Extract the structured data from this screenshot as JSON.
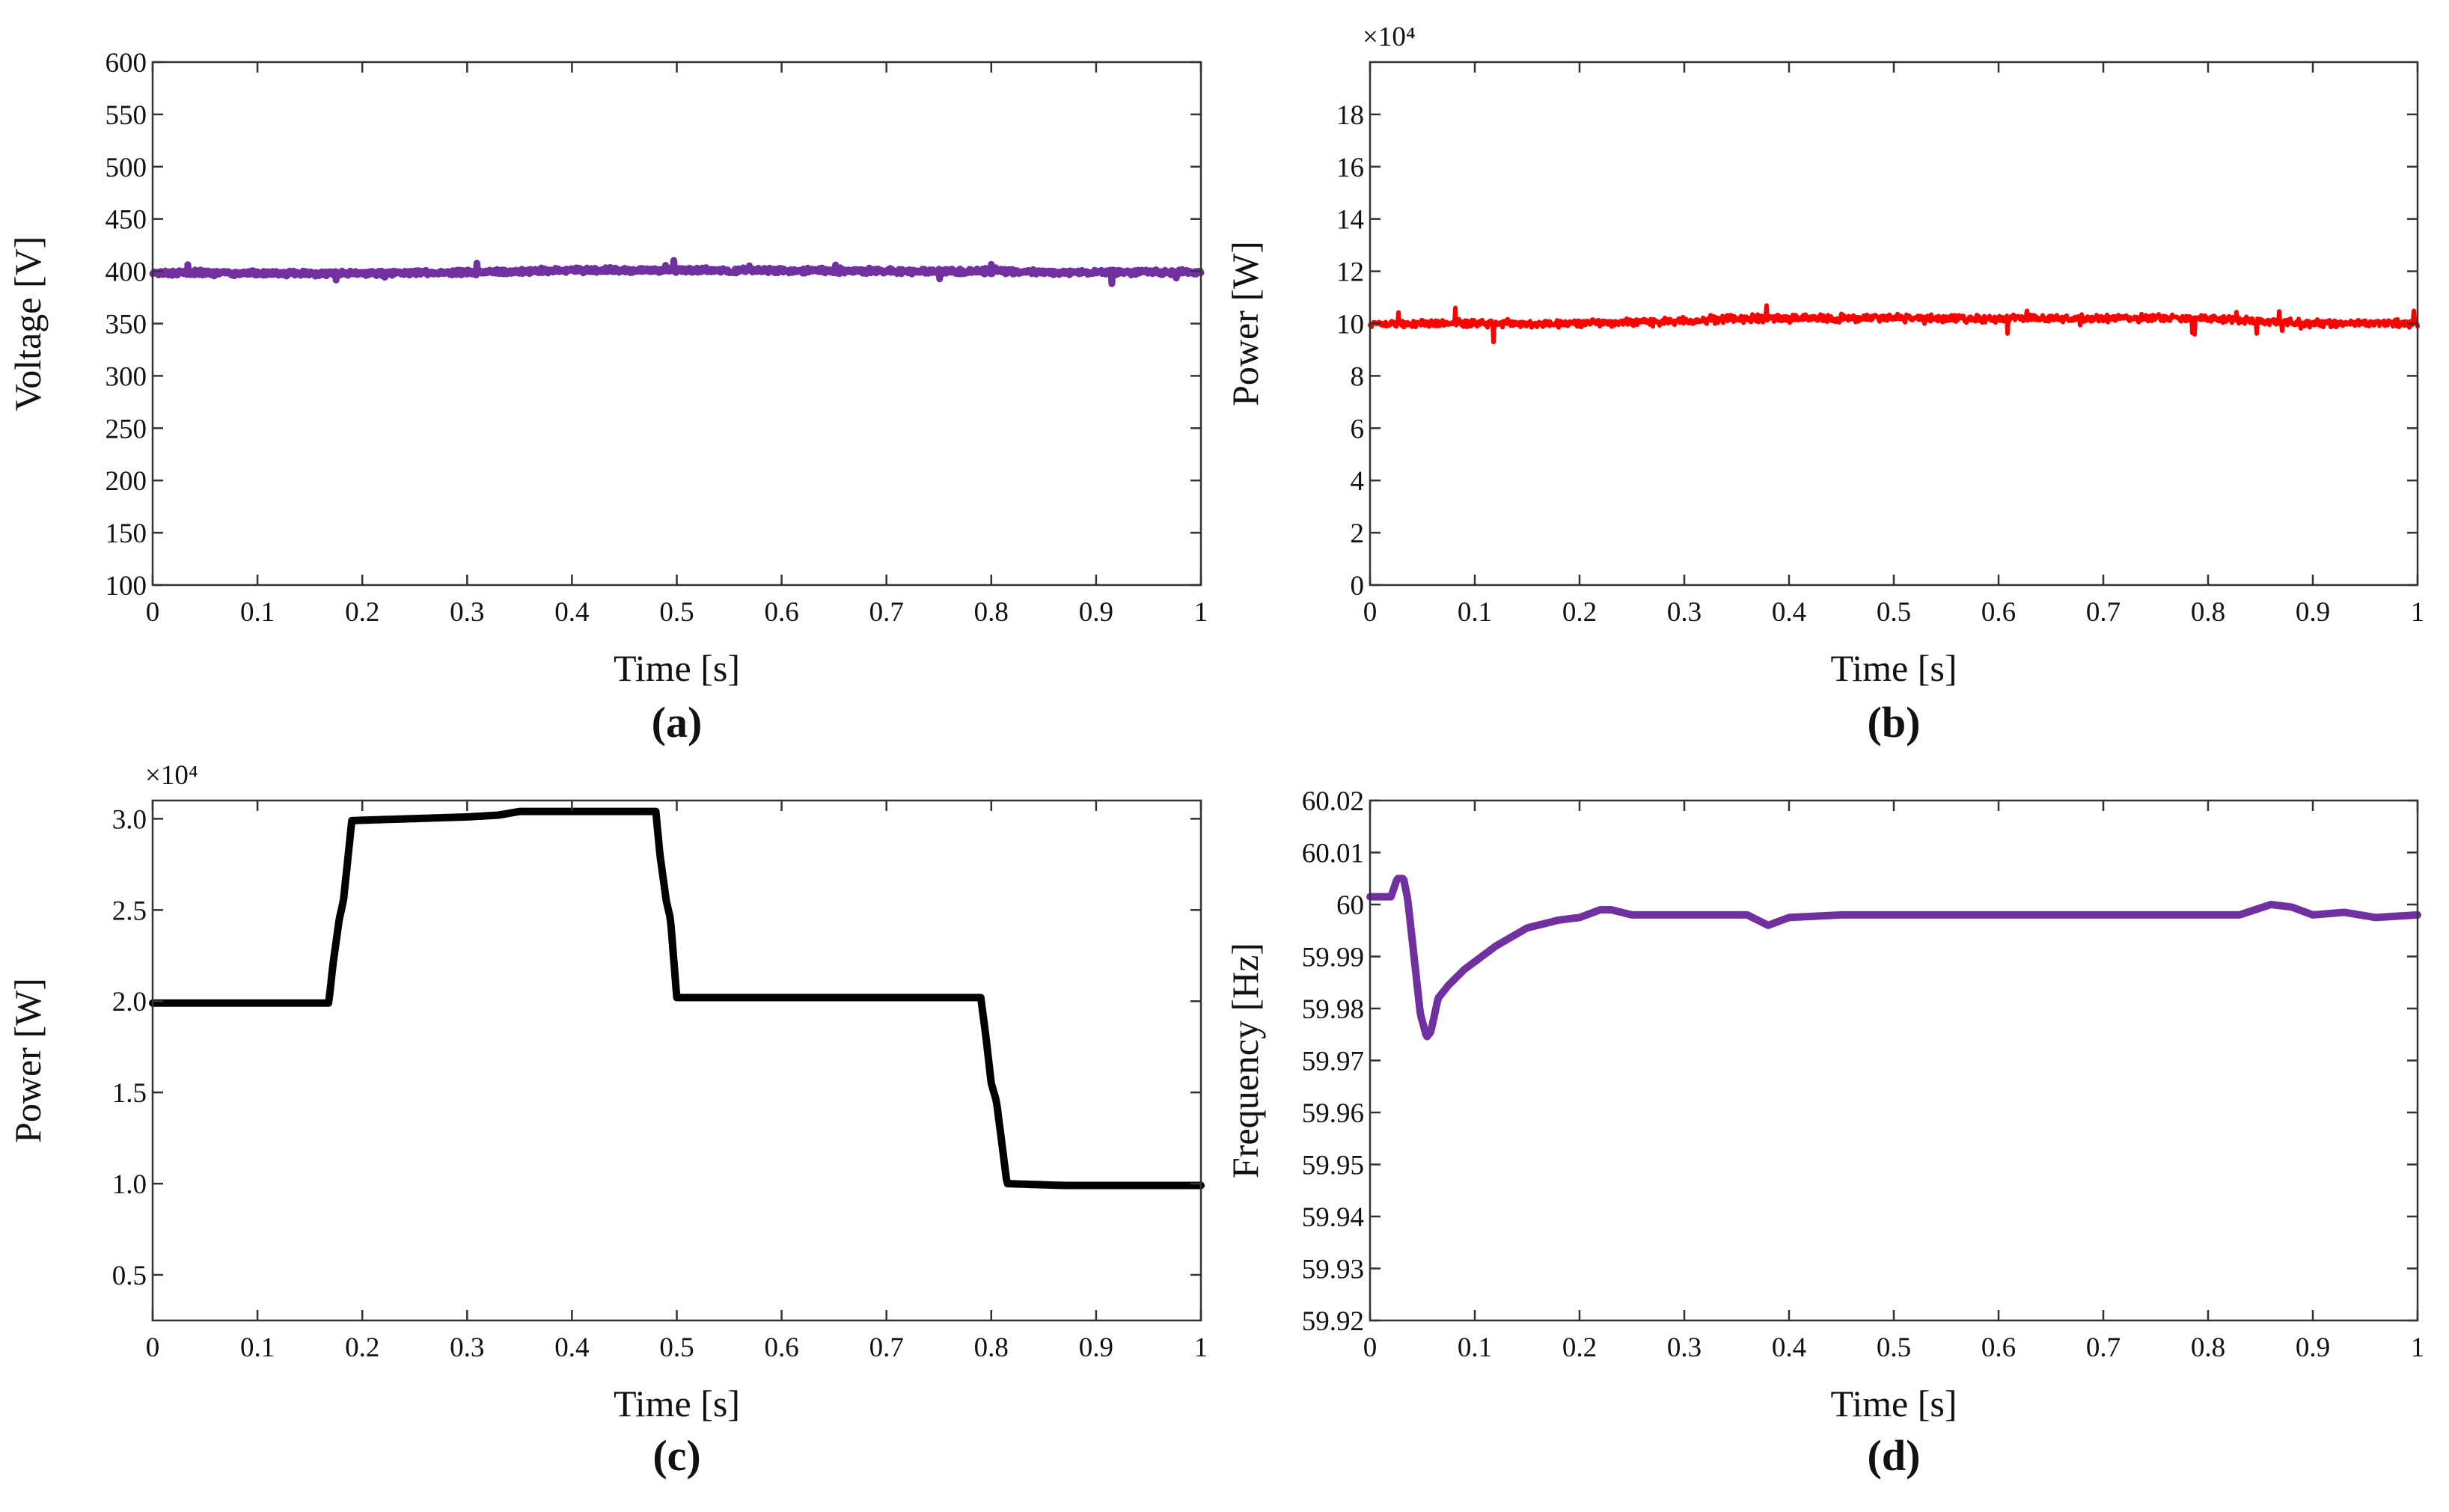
{
  "charts": [
    {
      "id": "a",
      "caption": "(a)",
      "xlabel": "Time [s]",
      "ylabel": "Voltage [V]",
      "exponent": "",
      "color": "#7030A0",
      "linewidth": 9,
      "noise": 3,
      "xlim": [
        0,
        1
      ],
      "ylim": [
        100,
        600
      ],
      "xticks": [
        0,
        0.1,
        0.2,
        0.3,
        0.4,
        0.5,
        0.6,
        0.7,
        0.8,
        0.9,
        1
      ],
      "xtick_labels": [
        "0",
        "0.1",
        "0.2",
        "0.3",
        "0.4",
        "0.5",
        "0.6",
        "0.7",
        "0.8",
        "0.9",
        "1"
      ],
      "yticks": [
        100,
        150,
        200,
        250,
        300,
        350,
        400,
        450,
        500,
        550,
        600
      ],
      "ytick_labels": [
        "100",
        "150",
        "200",
        "250",
        "300",
        "350",
        "400",
        "450",
        "500",
        "550",
        "600"
      ]
    },
    {
      "id": "b",
      "caption": "(b)",
      "xlabel": "Time [s]",
      "ylabel": "Power [W]",
      "exponent": "×10⁴",
      "color": "#FF0000",
      "linewidth": 6,
      "noise": 0.18,
      "xlim": [
        0,
        1
      ],
      "ylim": [
        0,
        20
      ],
      "xticks": [
        0,
        0.1,
        0.2,
        0.3,
        0.4,
        0.5,
        0.6,
        0.7,
        0.8,
        0.9,
        1
      ],
      "xtick_labels": [
        "0",
        "0.1",
        "0.2",
        "0.3",
        "0.4",
        "0.5",
        "0.6",
        "0.7",
        "0.8",
        "0.9",
        "1"
      ],
      "yticks": [
        0,
        2,
        4,
        6,
        8,
        10,
        12,
        14,
        16,
        18
      ],
      "ytick_labels": [
        "0",
        "2",
        "4",
        "6",
        "8",
        "10",
        "12",
        "14",
        "16",
        "18"
      ]
    },
    {
      "id": "c",
      "caption": "(c)",
      "xlabel": "Time [s]",
      "ylabel": "Power [W]",
      "exponent": "×10⁴",
      "color": "#000000",
      "linewidth": 10,
      "noise": 0,
      "xlim": [
        0,
        1
      ],
      "ylim": [
        0.25,
        3.1
      ],
      "xticks": [
        0,
        0.1,
        0.2,
        0.3,
        0.4,
        0.5,
        0.6,
        0.7,
        0.8,
        0.9,
        1
      ],
      "xtick_labels": [
        "0",
        "0.1",
        "0.2",
        "0.3",
        "0.4",
        "0.5",
        "0.6",
        "0.7",
        "0.8",
        "0.9",
        "1"
      ],
      "yticks": [
        0.5,
        1.0,
        1.5,
        2.0,
        2.5,
        3.0
      ],
      "ytick_labels": [
        "0.5",
        "1.0",
        "1.5",
        "2.0",
        "2.5",
        "3.0"
      ]
    },
    {
      "id": "d",
      "caption": "(d)",
      "xlabel": "Time [s]",
      "ylabel": "Frequency [Hz]",
      "exponent": "",
      "color": "#7030A0",
      "linewidth": 10,
      "noise": 0,
      "xlim": [
        0,
        1
      ],
      "ylim": [
        59.92,
        60.02
      ],
      "xticks": [
        0,
        0.1,
        0.2,
        0.3,
        0.4,
        0.5,
        0.6,
        0.7,
        0.8,
        0.9,
        1
      ],
      "xtick_labels": [
        "0",
        "0.1",
        "0.2",
        "0.3",
        "0.4",
        "0.5",
        "0.6",
        "0.7",
        "0.8",
        "0.9",
        "1"
      ],
      "yticks": [
        59.92,
        59.93,
        59.94,
        59.95,
        59.96,
        59.97,
        59.98,
        59.99,
        60.0,
        60.01,
        60.02
      ],
      "ytick_labels": [
        "59.92",
        "59.93",
        "59.94",
        "59.95",
        "59.96",
        "59.97",
        "59.98",
        "59.99",
        "60",
        "60.01",
        "60.02"
      ]
    }
  ],
  "chart_data": [
    {
      "type": "line",
      "title": "(a)",
      "xlabel": "Time [s]",
      "ylabel": "Voltage [V]",
      "xlim": [
        0,
        1
      ],
      "ylim": [
        100,
        600
      ],
      "series": [
        {
          "name": "Voltage",
          "x": [
            0,
            0.1,
            0.2,
            0.3,
            0.35,
            0.4,
            0.5,
            0.6,
            0.7,
            0.8,
            0.85,
            0.9,
            1.0
          ],
          "y": [
            399,
            398,
            398,
            399,
            400,
            401,
            401,
            401,
            400,
            400,
            399,
            399,
            399
          ]
        }
      ]
    },
    {
      "type": "line",
      "title": "(b)",
      "xlabel": "Time [s]",
      "ylabel": "Power [W]",
      "y_multiplier": "×10^4",
      "xlim": [
        0,
        1
      ],
      "ylim": [
        0,
        20
      ],
      "series": [
        {
          "name": "Power",
          "x": [
            0,
            0.1,
            0.2,
            0.3,
            0.35,
            0.4,
            0.5,
            0.6,
            0.7,
            0.8,
            0.85,
            0.9,
            1.0
          ],
          "y": [
            10.0,
            10.0,
            10.0,
            10.1,
            10.2,
            10.2,
            10.2,
            10.2,
            10.2,
            10.2,
            10.1,
            10.0,
            10.0
          ]
        }
      ]
    },
    {
      "type": "line",
      "title": "(c)",
      "xlabel": "Time [s]",
      "ylabel": "Power [W]",
      "y_multiplier": "×10^4",
      "xlim": [
        0,
        1
      ],
      "ylim": [
        0.25,
        3.1
      ],
      "series": [
        {
          "name": "Power",
          "x": [
            0,
            0.168,
            0.172,
            0.178,
            0.182,
            0.19,
            0.3,
            0.33,
            0.35,
            0.48,
            0.484,
            0.49,
            0.494,
            0.5,
            0.79,
            0.795,
            0.8,
            0.805,
            0.815,
            0.87,
            1.0
          ],
          "y": [
            1.99,
            1.99,
            2.2,
            2.45,
            2.55,
            2.99,
            3.01,
            3.02,
            3.04,
            3.04,
            2.8,
            2.55,
            2.45,
            2.02,
            2.02,
            1.8,
            1.55,
            1.45,
            1.0,
            0.99,
            0.99
          ]
        }
      ]
    },
    {
      "type": "line",
      "title": "(d)",
      "xlabel": "Time [s]",
      "ylabel": "Frequency [Hz]",
      "xlim": [
        0,
        1
      ],
      "ylim": [
        59.92,
        60.02
      ],
      "series": [
        {
          "name": "Frequency",
          "x": [
            0,
            0.02,
            0.026,
            0.032,
            0.036,
            0.042,
            0.048,
            0.054,
            0.058,
            0.065,
            0.075,
            0.09,
            0.12,
            0.15,
            0.18,
            0.2,
            0.22,
            0.23,
            0.25,
            0.3,
            0.34,
            0.36,
            0.38,
            0.4,
            0.45,
            0.5,
            0.6,
            0.7,
            0.8,
            0.83,
            0.86,
            0.88,
            0.9,
            0.93,
            0.96,
            1.0
          ],
          "y": [
            60.0015,
            60.0015,
            60.005,
            60.005,
            60.001,
            59.99,
            59.979,
            59.9745,
            59.9755,
            59.982,
            59.9845,
            59.9875,
            59.992,
            59.9955,
            59.997,
            59.9975,
            59.999,
            59.999,
            59.998,
            59.998,
            59.998,
            59.998,
            59.996,
            59.9975,
            59.998,
            59.998,
            59.998,
            59.998,
            59.998,
            59.998,
            60.0,
            59.9995,
            59.998,
            59.9985,
            59.9975,
            59.998
          ]
        }
      ]
    }
  ]
}
